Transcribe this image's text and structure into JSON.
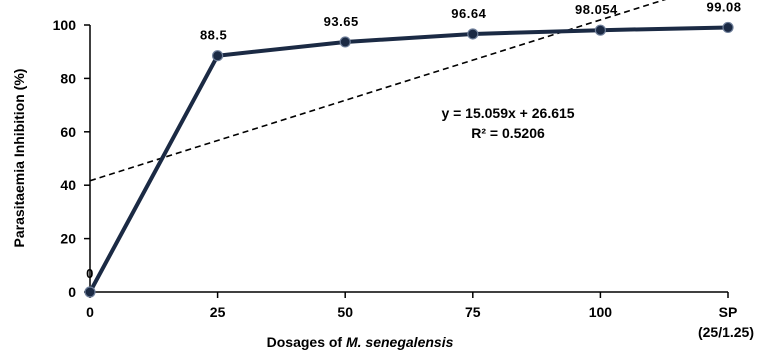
{
  "chart_data": {
    "type": "line",
    "categories": [
      "0",
      "25",
      "50",
      "75",
      "100",
      "SP"
    ],
    "category_sublabels": [
      "",
      "",
      "",
      "",
      "",
      "(25/1.25)"
    ],
    "series": [
      {
        "values": [
          0,
          88.5,
          93.65,
          96.64,
          98.054,
          99.08
        ],
        "data_labels": [
          "0",
          "88.5",
          "93.65",
          "96.64",
          "98.054",
          "99.08"
        ],
        "color": "#1b2a44"
      }
    ],
    "trendline": {
      "type": "linear",
      "slope": 15.059,
      "intercept": 26.615,
      "style": "dashed",
      "color": "#000000",
      "equation_label": "y = 15.059x + 26.615",
      "r2_label": "R² = 0.5206"
    },
    "xlabel_prefix": "Dosages of ",
    "xlabel_italic": "M. senegalensis",
    "ylabel": "Parasitaemia Inhibition (%)",
    "ylim": [
      0,
      100
    ],
    "yticks": [
      "0",
      "20",
      "40",
      "60",
      "80",
      "100"
    ],
    "grid": false,
    "legend": "none"
  }
}
